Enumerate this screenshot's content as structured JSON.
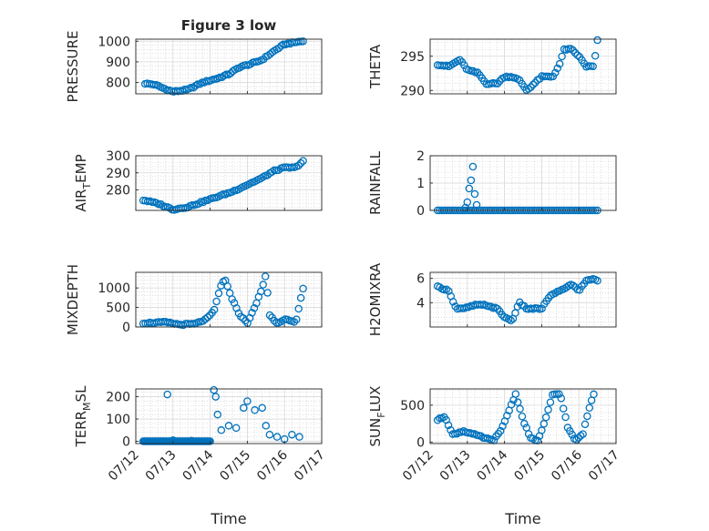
{
  "title": "Figure 3 low",
  "colors": {
    "marker": "#0072BD",
    "axis": "#262626",
    "grid": "#c8c8c8",
    "background": "#ffffff"
  },
  "shared_x": {
    "label": "Time",
    "ticks": [
      "07/12",
      "07/13",
      "07/14",
      "07/15",
      "07/16",
      "07/17"
    ],
    "tick_values": [
      0,
      1,
      2,
      3,
      4,
      5
    ],
    "range": [
      0,
      5
    ]
  },
  "chart_data": [
    {
      "type": "scatter",
      "panel": "top-left",
      "title": "Figure 3 low",
      "ylabel": "PRESSURE",
      "xlabel": "",
      "ylim": [
        745,
        1010
      ],
      "yticks": [
        800,
        900,
        1000
      ],
      "ytick_labels": [
        "800",
        "900",
        "1000"
      ],
      "grid": true,
      "minor_grid": true,
      "series": [
        {
          "anchors": [
            [
              0.25,
              795
            ],
            [
              0.5,
              790
            ],
            [
              0.8,
              768
            ],
            [
              1.0,
              755
            ],
            [
              1.4,
              765
            ],
            [
              1.8,
              800
            ],
            [
              2.2,
              820
            ],
            [
              2.5,
              840
            ],
            [
              2.8,
              875
            ],
            [
              3.1,
              890
            ],
            [
              3.4,
              910
            ],
            [
              3.7,
              950
            ],
            [
              4.0,
              985
            ],
            [
              4.3,
              995
            ],
            [
              4.5,
              1000
            ]
          ]
        }
      ]
    },
    {
      "type": "scatter",
      "panel": "top-right",
      "ylabel": "THETA",
      "xlabel": "",
      "ylim": [
        289.5,
        297.5
      ],
      "yticks": [
        290,
        295
      ],
      "ytick_labels": [
        "290",
        "295"
      ],
      "grid": true,
      "minor_grid": true,
      "series": [
        {
          "anchors": [
            [
              0.2,
              293.8
            ],
            [
              0.5,
              293.5
            ],
            [
              0.8,
              294.5
            ],
            [
              1.0,
              293
            ],
            [
              1.3,
              292.5
            ],
            [
              1.5,
              291
            ],
            [
              1.8,
              291
            ],
            [
              2.0,
              292
            ],
            [
              2.2,
              292
            ],
            [
              2.4,
              291.5
            ],
            [
              2.6,
              290
            ],
            [
              2.8,
              291
            ],
            [
              3.0,
              292
            ],
            [
              3.3,
              292
            ],
            [
              3.5,
              294
            ],
            [
              3.6,
              296
            ],
            [
              3.8,
              296
            ],
            [
              4.0,
              295
            ],
            [
              4.2,
              293.5
            ],
            [
              4.4,
              293.5
            ],
            [
              4.5,
              297.3
            ]
          ]
        }
      ]
    },
    {
      "type": "scatter",
      "panel": "middle-upper-left",
      "ylabel": "AIR_TEMP",
      "ylabel_main": "AIR",
      "ylabel_sub": "T",
      "ylabel_rest": "EMP",
      "xlabel": "",
      "ylim": [
        268,
        300
      ],
      "yticks": [
        280,
        290,
        300
      ],
      "ytick_labels": [
        "280",
        "290",
        "300"
      ],
      "grid": true,
      "minor_grid": true,
      "series": [
        {
          "anchors": [
            [
              0.2,
              274
            ],
            [
              0.6,
              272
            ],
            [
              1.0,
              268.5
            ],
            [
              1.4,
              270
            ],
            [
              1.8,
              273
            ],
            [
              2.2,
              276
            ],
            [
              2.6,
              279
            ],
            [
              3.0,
              283
            ],
            [
              3.4,
              287
            ],
            [
              3.7,
              291
            ],
            [
              4.0,
              293
            ],
            [
              4.3,
              293
            ],
            [
              4.5,
              297
            ]
          ]
        }
      ]
    },
    {
      "type": "scatter",
      "panel": "middle-upper-right",
      "ylabel": "RAINFALL",
      "xlabel": "",
      "ylim": [
        0,
        2
      ],
      "yticks": [
        0,
        1,
        2
      ],
      "ytick_labels": [
        "0",
        "1",
        "2"
      ],
      "grid": true,
      "minor_grid": true,
      "series": [
        {
          "anchors": [
            [
              0.2,
              0
            ],
            [
              4.5,
              0
            ]
          ],
          "extra": [
            [
              0.95,
              0.1
            ],
            [
              1.0,
              0.3
            ],
            [
              1.05,
              0.8
            ],
            [
              1.1,
              1.1
            ],
            [
              1.15,
              1.6
            ],
            [
              1.2,
              0.6
            ],
            [
              1.25,
              0.2
            ]
          ]
        }
      ]
    },
    {
      "type": "scatter",
      "panel": "middle-lower-left",
      "ylabel": "MIXDEPTH",
      "xlabel": "",
      "ylim": [
        0,
        1400
      ],
      "yticks": [
        0,
        500,
        1000
      ],
      "ytick_labels": [
        "0",
        "500",
        "1000"
      ],
      "grid": true,
      "minor_grid": true,
      "series": [
        {
          "anchors": [
            [
              0.2,
              100
            ],
            [
              0.8,
              120
            ],
            [
              1.2,
              60
            ],
            [
              1.6,
              80
            ],
            [
              1.9,
              200
            ],
            [
              2.1,
              400
            ],
            [
              2.3,
              1100
            ],
            [
              2.4,
              1200
            ],
            [
              2.6,
              700
            ],
            [
              2.8,
              300
            ],
            [
              3.0,
              100
            ],
            [
              3.2,
              500
            ],
            [
              3.4,
              1000
            ],
            [
              3.5,
              1350
            ],
            [
              3.6,
              300
            ],
            [
              3.8,
              100
            ],
            [
              4.0,
              200
            ],
            [
              4.3,
              100
            ],
            [
              4.5,
              1000
            ]
          ]
        }
      ]
    },
    {
      "type": "scatter",
      "panel": "middle-lower-right",
      "ylabel": "H2OMIXRA",
      "xlabel": "",
      "ylim": [
        2,
        6.5
      ],
      "yticks": [
        4,
        6
      ],
      "ytick_labels": [
        "4",
        "6"
      ],
      "grid": true,
      "minor_grid": true,
      "series": [
        {
          "anchors": [
            [
              0.2,
              5.3
            ],
            [
              0.5,
              5
            ],
            [
              0.7,
              3.5
            ],
            [
              0.9,
              3.5
            ],
            [
              1.2,
              3.8
            ],
            [
              1.5,
              3.8
            ],
            [
              1.8,
              3.5
            ],
            [
              2.0,
              2.8
            ],
            [
              2.2,
              2.5
            ],
            [
              2.4,
              4
            ],
            [
              2.6,
              3.5
            ],
            [
              2.8,
              3.5
            ],
            [
              3.0,
              3.5
            ],
            [
              3.2,
              4.5
            ],
            [
              3.5,
              5
            ],
            [
              3.8,
              5.5
            ],
            [
              4.0,
              5
            ],
            [
              4.2,
              5.8
            ],
            [
              4.4,
              6
            ],
            [
              4.5,
              5.8
            ]
          ]
        }
      ]
    },
    {
      "type": "scatter",
      "panel": "bottom-left",
      "ylabel": "TERR_MSL",
      "ylabel_main": "TERR",
      "ylabel_sub": "M",
      "ylabel_rest": "SL",
      "xlabel": "Time",
      "ylim": [
        -10,
        235
      ],
      "yticks": [
        0,
        100,
        200
      ],
      "ytick_labels": [
        "0",
        "100",
        "200"
      ],
      "grid": true,
      "minor_grid": true,
      "series": [
        {
          "anchors": [
            [
              0.2,
              0
            ],
            [
              2.0,
              0
            ]
          ],
          "extra": [
            [
              0.85,
              210
            ],
            [
              1.0,
              5
            ],
            [
              1.5,
              3
            ],
            [
              2.1,
              230
            ],
            [
              2.15,
              200
            ],
            [
              2.2,
              120
            ],
            [
              2.3,
              50
            ],
            [
              2.5,
              70
            ],
            [
              2.7,
              60
            ],
            [
              2.9,
              150
            ],
            [
              3.0,
              180
            ],
            [
              3.2,
              140
            ],
            [
              3.4,
              150
            ],
            [
              3.5,
              70
            ],
            [
              3.6,
              30
            ],
            [
              3.8,
              20
            ],
            [
              4.0,
              10
            ],
            [
              4.2,
              30
            ],
            [
              4.4,
              20
            ]
          ]
        }
      ]
    },
    {
      "type": "scatter",
      "panel": "bottom-right",
      "ylabel": "SUN_FLUX",
      "ylabel_main": "SUN",
      "ylabel_sub": "F",
      "ylabel_rest": "LUX",
      "xlabel": "Time",
      "ylim": [
        -20,
        720
      ],
      "yticks": [
        0,
        500
      ],
      "ytick_labels": [
        "0",
        "500"
      ],
      "grid": true,
      "minor_grid": true,
      "series": [
        {
          "anchors": [
            [
              0.2,
              300
            ],
            [
              0.4,
              350
            ],
            [
              0.6,
              100
            ],
            [
              0.9,
              150
            ],
            [
              1.2,
              100
            ],
            [
              1.5,
              50
            ],
            [
              1.7,
              20
            ],
            [
              1.9,
              150
            ],
            [
              2.1,
              400
            ],
            [
              2.3,
              650
            ],
            [
              2.5,
              300
            ],
            [
              2.7,
              50
            ],
            [
              2.9,
              20
            ],
            [
              3.1,
              300
            ],
            [
              3.3,
              650
            ],
            [
              3.5,
              650
            ],
            [
              3.7,
              200
            ],
            [
              3.9,
              20
            ],
            [
              4.1,
              100
            ],
            [
              4.3,
              500
            ],
            [
              4.4,
              650
            ]
          ]
        }
      ]
    }
  ]
}
